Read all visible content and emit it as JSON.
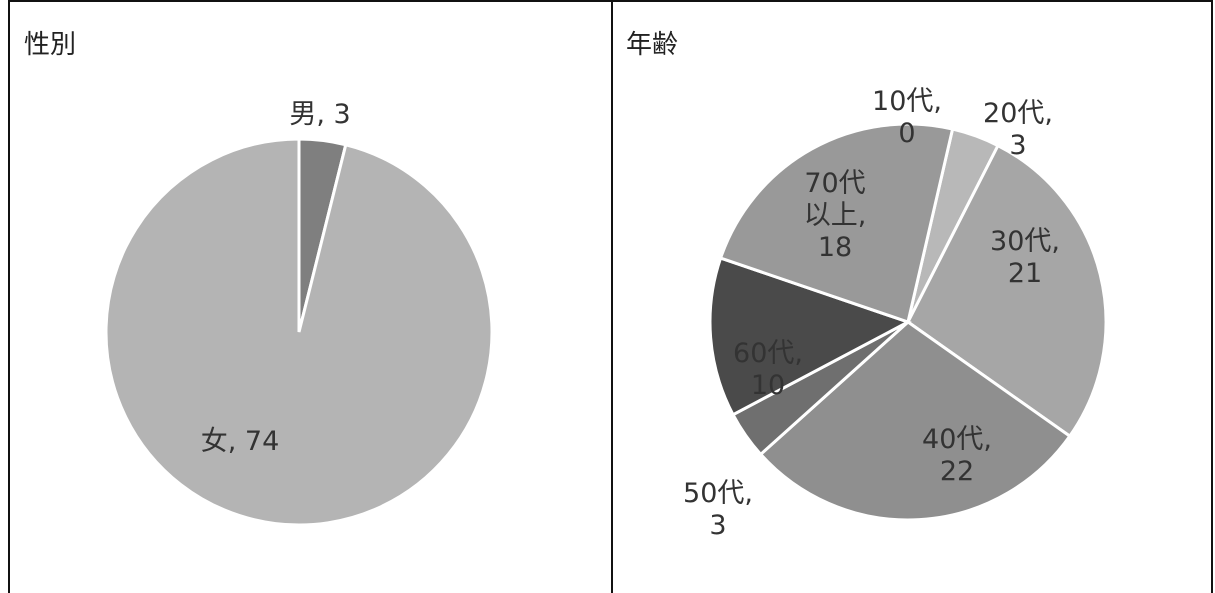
{
  "chart_data": [
    {
      "type": "pie",
      "title": "性別",
      "slices": [
        {
          "label": "男",
          "value": 3,
          "color": "#7f7f7f"
        },
        {
          "label": "女",
          "value": 74,
          "color": "#b4b4b4"
        }
      ],
      "data_labels": [
        {
          "lines": [
            "男, 3"
          ]
        },
        {
          "lines": [
            "女, 74"
          ]
        }
      ]
    },
    {
      "type": "pie",
      "title": "年齢",
      "slices": [
        {
          "label": "10代",
          "value": 0,
          "color": "#c0c0c0"
        },
        {
          "label": "20代",
          "value": 3,
          "color": "#b8b8b8"
        },
        {
          "label": "30代",
          "value": 21,
          "color": "#a6a6a6"
        },
        {
          "label": "40代",
          "value": 22,
          "color": "#8f8f8f"
        },
        {
          "label": "50代",
          "value": 3,
          "color": "#6f6f6f"
        },
        {
          "label": "60代",
          "value": 10,
          "color": "#4a4a4a"
        },
        {
          "label": "70代以上",
          "value": 18,
          "color": "#999999"
        }
      ],
      "data_labels": [
        {
          "lines": [
            "10代,",
            "0"
          ]
        },
        {
          "lines": [
            "20代,",
            "3"
          ]
        },
        {
          "lines": [
            "30代,",
            "21"
          ]
        },
        {
          "lines": [
            "40代,",
            "22"
          ]
        },
        {
          "lines": [
            "50代,",
            "3"
          ]
        },
        {
          "lines": [
            "60代,",
            "10"
          ]
        },
        {
          "lines": [
            "70代",
            "以上,",
            "18"
          ]
        }
      ]
    }
  ]
}
